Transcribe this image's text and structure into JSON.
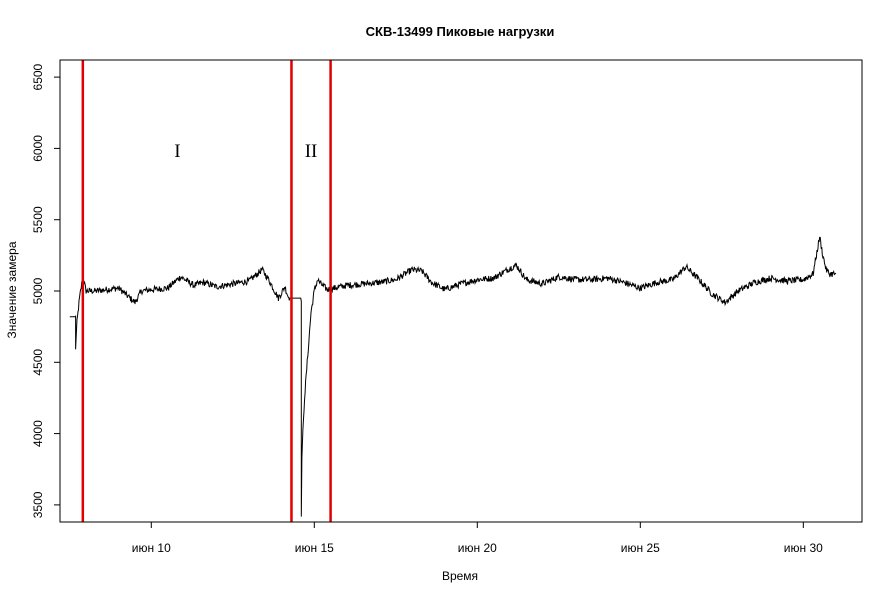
{
  "chart_data": {
    "type": "line",
    "title": "СКВ-13499 Пиковые нагрузки",
    "xlabel": "Время",
    "ylabel": "Значение замера",
    "x_start": "2024-06-07",
    "xlim": [
      7.2,
      31.8
    ],
    "ylim": [
      3380,
      6620
    ],
    "x_ticks": [
      {
        "value": 10,
        "label": "июн 10"
      },
      {
        "value": 15,
        "label": "июн 15"
      },
      {
        "value": 20,
        "label": "июн 20"
      },
      {
        "value": 25,
        "label": "июн 25"
      },
      {
        "value": 30,
        "label": "июн 30"
      }
    ],
    "y_ticks": [
      {
        "value": 3500,
        "label": "3500"
      },
      {
        "value": 4000,
        "label": "4000"
      },
      {
        "value": 4500,
        "label": "4500"
      },
      {
        "value": 5000,
        "label": "5000"
      },
      {
        "value": 5500,
        "label": "5500"
      },
      {
        "value": 6000,
        "label": "6000"
      },
      {
        "value": 6500,
        "label": "6500"
      }
    ],
    "vertical_lines": [
      {
        "x": 7.9,
        "color": "#e00000"
      },
      {
        "x": 14.3,
        "color": "#e00000"
      },
      {
        "x": 15.5,
        "color": "#e00000"
      }
    ],
    "annotations": [
      {
        "text": "I",
        "x": 10.8,
        "y": 5940
      },
      {
        "text": "II",
        "x": 14.9,
        "y": 5940
      }
    ],
    "series": [
      {
        "color": "#000000",
        "x": [
          7.5,
          7.68,
          7.68,
          7.72,
          7.8,
          7.9,
          8.0,
          8.3,
          8.6,
          9.0,
          9.5,
          9.7,
          10.0,
          10.5,
          10.9,
          11.3,
          11.6,
          12.0,
          12.5,
          13.0,
          13.4,
          13.6,
          13.9,
          14.1,
          14.2,
          14.25,
          14.3,
          14.35,
          14.6,
          14.6,
          14.62,
          14.7,
          14.8,
          14.9,
          15.0,
          15.1,
          15.2,
          15.4,
          15.6,
          16.0,
          16.5,
          17.0,
          17.5,
          18.0,
          18.3,
          18.6,
          19.0,
          19.5,
          20.0,
          20.5,
          21.0,
          21.2,
          21.5,
          22.0,
          22.5,
          23.0,
          23.5,
          24.0,
          24.5,
          25.0,
          25.5,
          26.0,
          26.4,
          26.8,
          27.2,
          27.6,
          28.0,
          28.5,
          29.0,
          29.5,
          30.0,
          30.3,
          30.5,
          30.6,
          30.7,
          30.8,
          31.0
        ],
        "y": [
          4820,
          4820,
          4600,
          4780,
          4950,
          5100,
          5000,
          5000,
          5010,
          5020,
          4920,
          5000,
          5010,
          5020,
          5100,
          5040,
          5060,
          5030,
          5050,
          5070,
          5150,
          5080,
          4950,
          5030,
          4960,
          4950,
          4950,
          4950,
          4950,
          3400,
          3850,
          4250,
          4550,
          4850,
          5000,
          5080,
          5050,
          5010,
          5020,
          5040,
          5050,
          5060,
          5080,
          5150,
          5140,
          5060,
          5010,
          5050,
          5080,
          5090,
          5160,
          5180,
          5080,
          5050,
          5100,
          5080,
          5080,
          5090,
          5060,
          5020,
          5060,
          5080,
          5170,
          5080,
          4980,
          4920,
          5000,
          5060,
          5090,
          5070,
          5080,
          5120,
          5380,
          5250,
          5150,
          5120,
          5120
        ]
      }
    ]
  }
}
